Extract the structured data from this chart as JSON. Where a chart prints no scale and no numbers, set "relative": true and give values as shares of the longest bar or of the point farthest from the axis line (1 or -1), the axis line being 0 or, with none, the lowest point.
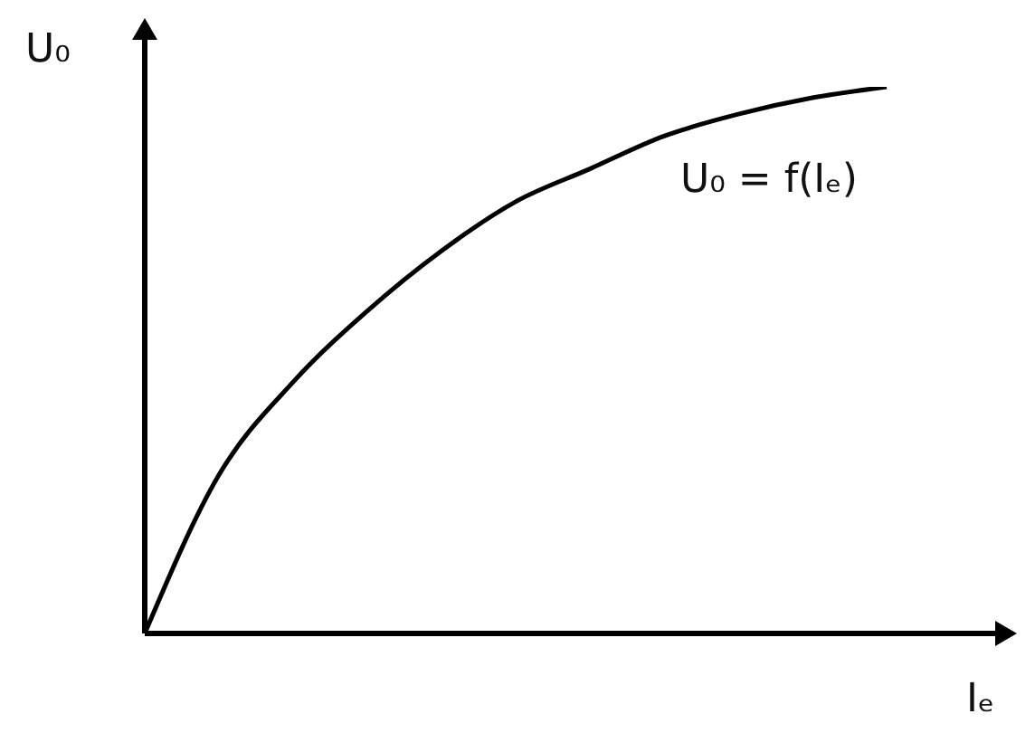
{
  "chart_data": {
    "type": "line",
    "relative": true,
    "xlabel": "Iₑ",
    "ylabel": "U₀",
    "annotations": [
      "U₀ = f(Iₑ)"
    ],
    "categories": [
      null,
      null,
      null,
      null,
      null,
      null,
      null,
      null,
      null,
      null,
      null
    ],
    "series": [
      {
        "color": "#000000",
        "values": [
          0,
          0.29,
          0.46,
          0.59,
          0.7,
          0.79,
          0.85,
          0.91,
          0.95,
          0.98,
          1.0
        ]
      }
    ],
    "marker": "none"
  }
}
